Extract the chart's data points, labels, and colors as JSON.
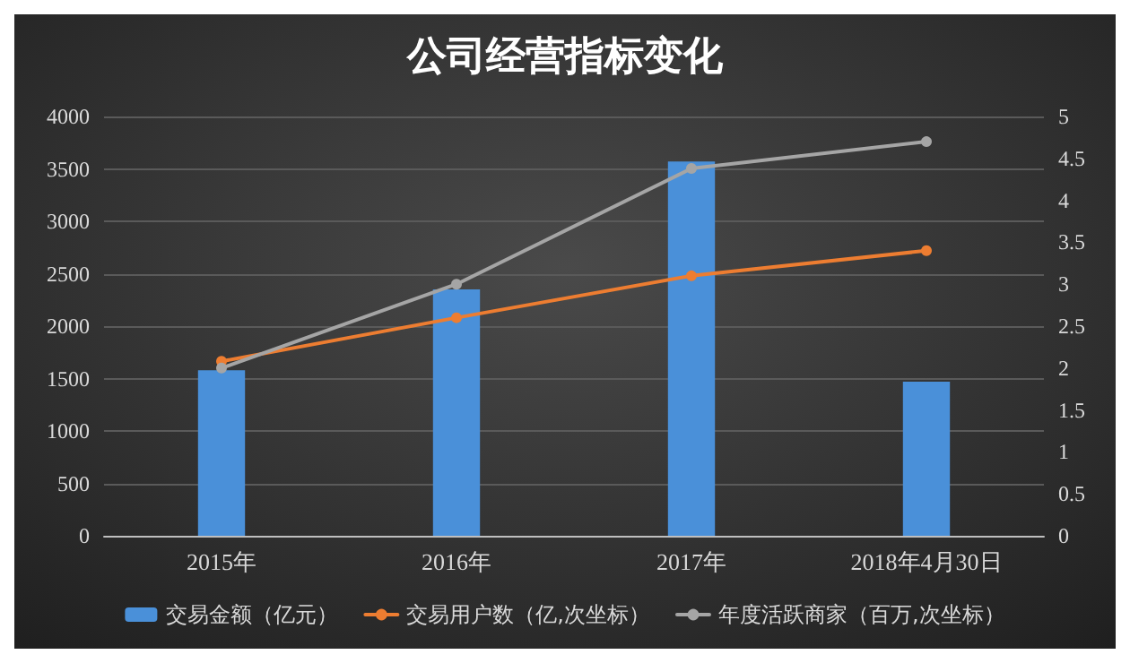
{
  "chart_data": {
    "type": "bar",
    "title": "公司经营指标变化",
    "categories": [
      "2015年",
      "2016年",
      "2017年",
      "2018年4月30日"
    ],
    "series": [
      {
        "name": "交易金额（亿元）",
        "color": "#4a90d9",
        "values": [
          1580,
          2350,
          3570,
          1470
        ]
      },
      {
        "name": "交易用户数（亿,次坐标）",
        "type": "line",
        "axis": "y2",
        "color": "#ed7d31",
        "values": [
          2.08,
          2.6,
          3.1,
          3.4
        ]
      },
      {
        "name": "年度活跃商家（百万,次坐标）",
        "type": "line",
        "axis": "y2",
        "color": "#a5a5a5",
        "values": [
          2.0,
          3.0,
          4.38,
          4.7
        ]
      }
    ],
    "ylim": [
      0,
      4000
    ],
    "yticks": [
      0,
      500,
      1000,
      1500,
      2000,
      2500,
      3000,
      3500,
      4000
    ],
    "y2lim": [
      0,
      5
    ],
    "y2ticks": [
      0,
      0.5,
      1,
      1.5,
      2,
      2.5,
      3,
      3.5,
      4,
      4.5,
      5
    ],
    "grid": "y",
    "legend": "bottom",
    "marker": "circle",
    "line_style": "solid"
  }
}
